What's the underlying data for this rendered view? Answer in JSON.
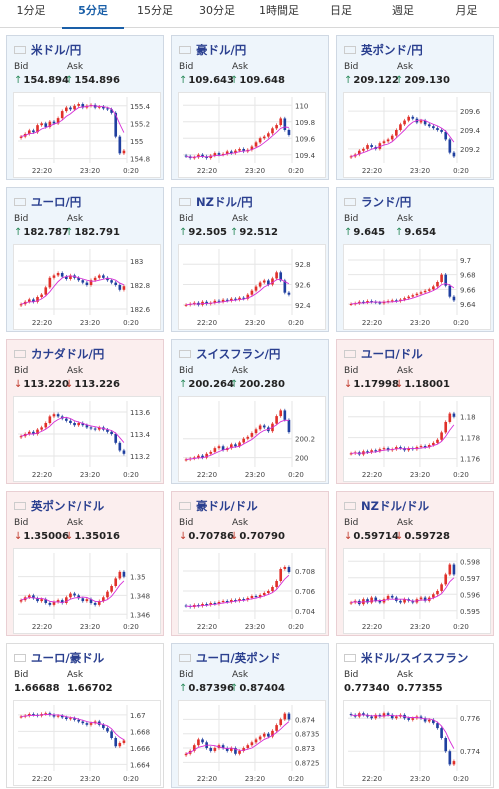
{
  "tabs": [
    {
      "label": "1分足",
      "active": false
    },
    {
      "label": "5分足",
      "active": true
    },
    {
      "label": "15分足",
      "active": false
    },
    {
      "label": "30分足",
      "active": false
    },
    {
      "label": "1時間足",
      "active": false
    },
    {
      "label": "日足",
      "active": false
    },
    {
      "label": "週足",
      "active": false
    },
    {
      "label": "月足",
      "active": false
    }
  ],
  "labels": {
    "bid": "Bid",
    "ask": "Ask"
  },
  "colors": {
    "up_arrow": "#2a8a5a",
    "down_arrow": "#c0392b",
    "candle_up": "#e0302a",
    "candle_down": "#1f3f9f",
    "ma": "#d62fd6"
  },
  "x_ticks": [
    "22:20",
    "23:20",
    "0:20"
  ],
  "cards": [
    {
      "pair": "米ドル/円",
      "flag": "us",
      "dir": "up",
      "bid": "154.894",
      "ask": "154.896",
      "chart_data": {
        "type": "candlestick",
        "ylim": [
          154.75,
          155.5
        ],
        "y_ticks": [
          "155.4",
          "155.2",
          "155",
          "154.8"
        ],
        "closes": [
          155.05,
          155.08,
          155.12,
          155.1,
          155.18,
          155.2,
          155.16,
          155.22,
          155.2,
          155.26,
          155.34,
          155.38,
          155.36,
          155.4,
          155.42,
          155.38,
          155.4,
          155.41,
          155.38,
          155.39,
          155.37,
          155.36,
          155.32,
          155.05,
          154.86,
          154.89
        ]
      }
    },
    {
      "pair": "豪ドル/円",
      "flag": "au",
      "dir": "up",
      "bid": "109.643",
      "ask": "109.648",
      "chart_data": {
        "type": "candlestick",
        "ylim": [
          109.3,
          110.1
        ],
        "y_ticks": [
          "110",
          "109.8",
          "109.6",
          "109.4"
        ],
        "closes": [
          109.38,
          109.36,
          109.37,
          109.4,
          109.38,
          109.36,
          109.39,
          109.42,
          109.4,
          109.41,
          109.44,
          109.42,
          109.45,
          109.47,
          109.44,
          109.46,
          109.5,
          109.55,
          109.6,
          109.62,
          109.66,
          109.72,
          109.76,
          109.84,
          109.7,
          109.64
        ]
      }
    },
    {
      "pair": "英ポンド/円",
      "flag": "gb",
      "dir": "up",
      "bid": "209.122",
      "ask": "209.130",
      "chart_data": {
        "type": "candlestick",
        "ylim": [
          209.05,
          209.75
        ],
        "y_ticks": [
          "209.6",
          "209.4",
          "209.2"
        ],
        "closes": [
          209.12,
          209.14,
          209.18,
          209.2,
          209.24,
          209.22,
          209.2,
          209.26,
          209.28,
          209.3,
          209.34,
          209.4,
          209.46,
          209.5,
          209.54,
          209.52,
          209.48,
          209.5,
          209.46,
          209.44,
          209.42,
          209.4,
          209.38,
          209.3,
          209.16,
          209.12
        ]
      }
    },
    {
      "pair": "ユーロ/円",
      "flag": "eu",
      "dir": "up",
      "bid": "182.787",
      "ask": "182.791",
      "chart_data": {
        "type": "candlestick",
        "ylim": [
          182.55,
          183.1
        ],
        "y_ticks": [
          "183",
          "182.8",
          "182.6"
        ],
        "closes": [
          182.64,
          182.66,
          182.68,
          182.66,
          182.7,
          182.72,
          182.78,
          182.86,
          182.88,
          182.9,
          182.87,
          182.85,
          182.88,
          182.86,
          182.84,
          182.82,
          182.8,
          182.84,
          182.86,
          182.88,
          182.86,
          182.84,
          182.82,
          182.8,
          182.76,
          182.79
        ]
      }
    },
    {
      "pair": "NZドル/円",
      "flag": "nz",
      "dir": "up",
      "bid": "92.505",
      "ask": "92.512",
      "chart_data": {
        "type": "candlestick",
        "ylim": [
          92.3,
          92.95
        ],
        "y_ticks": [
          "92.8",
          "92.6",
          "92.4"
        ],
        "closes": [
          92.4,
          92.41,
          92.42,
          92.4,
          92.43,
          92.41,
          92.42,
          92.44,
          92.43,
          92.45,
          92.44,
          92.46,
          92.45,
          92.47,
          92.46,
          92.5,
          92.54,
          92.58,
          92.62,
          92.64,
          92.6,
          92.66,
          92.72,
          92.64,
          92.52,
          92.5
        ]
      }
    },
    {
      "pair": "ランド/円",
      "flag": "za",
      "dir": "up",
      "bid": "9.645",
      "ask": "9.654",
      "chart_data": {
        "type": "candlestick",
        "ylim": [
          9.625,
          9.715
        ],
        "y_ticks": [
          "9.7",
          "9.68",
          "9.66",
          "9.64"
        ],
        "closes": [
          9.64,
          9.641,
          9.643,
          9.642,
          9.644,
          9.643,
          9.642,
          9.641,
          9.643,
          9.644,
          9.645,
          9.644,
          9.646,
          9.648,
          9.65,
          9.652,
          9.654,
          9.656,
          9.658,
          9.66,
          9.664,
          9.67,
          9.68,
          9.665,
          9.65,
          9.645
        ]
      }
    },
    {
      "pair": "カナダドル/円",
      "flag": "ca",
      "dir": "dn",
      "bid": "113.220",
      "ask": "113.226",
      "chart_data": {
        "type": "candlestick",
        "ylim": [
          113.1,
          113.7
        ],
        "y_ticks": [
          "113.6",
          "113.4",
          "113.2"
        ],
        "closes": [
          113.38,
          113.4,
          113.42,
          113.4,
          113.44,
          113.46,
          113.5,
          113.56,
          113.58,
          113.56,
          113.54,
          113.52,
          113.5,
          113.48,
          113.5,
          113.48,
          113.46,
          113.45,
          113.44,
          113.46,
          113.44,
          113.42,
          113.4,
          113.32,
          113.25,
          113.22
        ]
      }
    },
    {
      "pair": "スイスフラン/円",
      "flag": "ch",
      "dir": "up",
      "bid": "200.264",
      "ask": "200.280",
      "chart_data": {
        "type": "candlestick",
        "ylim": [
          199.9,
          200.6
        ],
        "y_ticks": [
          "200.2",
          "200"
        ],
        "closes": [
          199.98,
          199.99,
          200.0,
          200.02,
          200.0,
          200.04,
          200.06,
          200.1,
          200.12,
          200.08,
          200.1,
          200.14,
          200.12,
          200.16,
          200.2,
          200.22,
          200.26,
          200.3,
          200.34,
          200.32,
          200.28,
          200.36,
          200.44,
          200.5,
          200.4,
          200.27
        ]
      }
    },
    {
      "pair": "ユーロ/ドル",
      "flag": "eu-us",
      "dir": "dn",
      "bid": "1.17998",
      "ask": "1.18001",
      "chart_data": {
        "type": "candlestick",
        "ylim": [
          1.1752,
          1.1815
        ],
        "y_ticks": [
          "1.18",
          "1.178",
          "1.176"
        ],
        "closes": [
          1.1765,
          1.1766,
          1.1764,
          1.1767,
          1.1766,
          1.1768,
          1.1767,
          1.1769,
          1.177,
          1.1768,
          1.1769,
          1.1771,
          1.177,
          1.1768,
          1.177,
          1.1769,
          1.1771,
          1.1772,
          1.1771,
          1.1773,
          1.1775,
          1.1778,
          1.1785,
          1.1795,
          1.1803,
          1.18
        ]
      }
    },
    {
      "pair": "英ポンド/ドル",
      "flag": "gb-us",
      "dir": "dn",
      "bid": "1.35006",
      "ask": "1.35016",
      "chart_data": {
        "type": "candlestick",
        "ylim": [
          1.3455,
          1.3525
        ],
        "y_ticks": [
          "1.35",
          "1.348",
          "1.346"
        ],
        "closes": [
          1.3475,
          1.3478,
          1.348,
          1.3477,
          1.3474,
          1.3476,
          1.3472,
          1.347,
          1.3473,
          1.3475,
          1.3472,
          1.3478,
          1.3482,
          1.348,
          1.3477,
          1.3474,
          1.3476,
          1.3472,
          1.347,
          1.3474,
          1.3478,
          1.3484,
          1.349,
          1.3498,
          1.3505,
          1.35
        ]
      }
    },
    {
      "pair": "豪ドル/ドル",
      "flag": "au-us",
      "dir": "dn",
      "bid": "0.70786",
      "ask": "0.70790",
      "chart_data": {
        "type": "candlestick",
        "ylim": [
          0.7032,
          0.7098
        ],
        "y_ticks": [
          "0.708",
          "0.706",
          "0.704"
        ],
        "closes": [
          0.7045,
          0.7044,
          0.7046,
          0.7045,
          0.7047,
          0.7046,
          0.7048,
          0.7047,
          0.7049,
          0.705,
          0.7049,
          0.7051,
          0.705,
          0.7052,
          0.7051,
          0.7053,
          0.7055,
          0.7054,
          0.7056,
          0.7058,
          0.706,
          0.7064,
          0.707,
          0.7082,
          0.7084,
          0.7079
        ]
      }
    },
    {
      "pair": "NZドル/ドル",
      "flag": "nz-us",
      "dir": "dn",
      "bid": "0.59714",
      "ask": "0.59728",
      "chart_data": {
        "type": "candlestick",
        "ylim": [
          0.5945,
          0.5985
        ],
        "y_ticks": [
          "0.598",
          "0.597",
          "0.596",
          "0.595"
        ],
        "closes": [
          0.5955,
          0.5956,
          0.5954,
          0.5957,
          0.5955,
          0.5958,
          0.5956,
          0.5955,
          0.5957,
          0.5959,
          0.5958,
          0.5956,
          0.5955,
          0.5957,
          0.5956,
          0.5955,
          0.5957,
          0.5958,
          0.5956,
          0.5958,
          0.596,
          0.5962,
          0.5966,
          0.5972,
          0.5978,
          0.5972
        ]
      }
    },
    {
      "pair": "ユーロ/豪ドル",
      "flag": "eu-au",
      "dir": "none",
      "bid": "1.66688",
      "ask": "1.66702",
      "chart_data": {
        "type": "candlestick",
        "ylim": [
          1.6632,
          1.6712
        ],
        "y_ticks": [
          "1.67",
          "1.668",
          "1.666",
          "1.664"
        ],
        "closes": [
          1.6698,
          1.6699,
          1.6701,
          1.67,
          1.6699,
          1.6701,
          1.6702,
          1.67,
          1.6698,
          1.6699,
          1.6697,
          1.6695,
          1.6696,
          1.6694,
          1.6692,
          1.669,
          1.6688,
          1.669,
          1.6692,
          1.6688,
          1.6684,
          1.668,
          1.6672,
          1.6662,
          1.6666,
          1.6669
        ]
      }
    },
    {
      "pair": "ユーロ/英ポンド",
      "flag": "eu-gb",
      "dir": "up",
      "bid": "0.87396",
      "ask": "0.87404",
      "chart_data": {
        "type": "candlestick",
        "ylim": [
          0.8722,
          0.8745
        ],
        "y_ticks": [
          "0.874",
          "0.8735",
          "0.873",
          "0.8725"
        ],
        "closes": [
          0.8728,
          0.8729,
          0.8731,
          0.8733,
          0.8732,
          0.873,
          0.8729,
          0.873,
          0.8731,
          0.873,
          0.8729,
          0.873,
          0.8728,
          0.8729,
          0.873,
          0.8731,
          0.8732,
          0.8733,
          0.8734,
          0.8735,
          0.8734,
          0.8736,
          0.8738,
          0.874,
          0.8742,
          0.874
        ]
      }
    },
    {
      "pair": "米ドル/スイスフラン",
      "flag": "us-ch",
      "dir": "none",
      "bid": "0.77340",
      "ask": "0.77355",
      "chart_data": {
        "type": "candlestick",
        "ylim": [
          0.7728,
          0.7768
        ],
        "y_ticks": [
          "0.776",
          "0.774"
        ],
        "closes": [
          0.7762,
          0.7761,
          0.7763,
          0.7762,
          0.7761,
          0.776,
          0.7762,
          0.7761,
          0.7763,
          0.7762,
          0.776,
          0.7761,
          0.7762,
          0.776,
          0.7759,
          0.776,
          0.7761,
          0.776,
          0.7758,
          0.7759,
          0.7757,
          0.7754,
          0.7748,
          0.774,
          0.7732,
          0.7734
        ]
      }
    }
  ]
}
